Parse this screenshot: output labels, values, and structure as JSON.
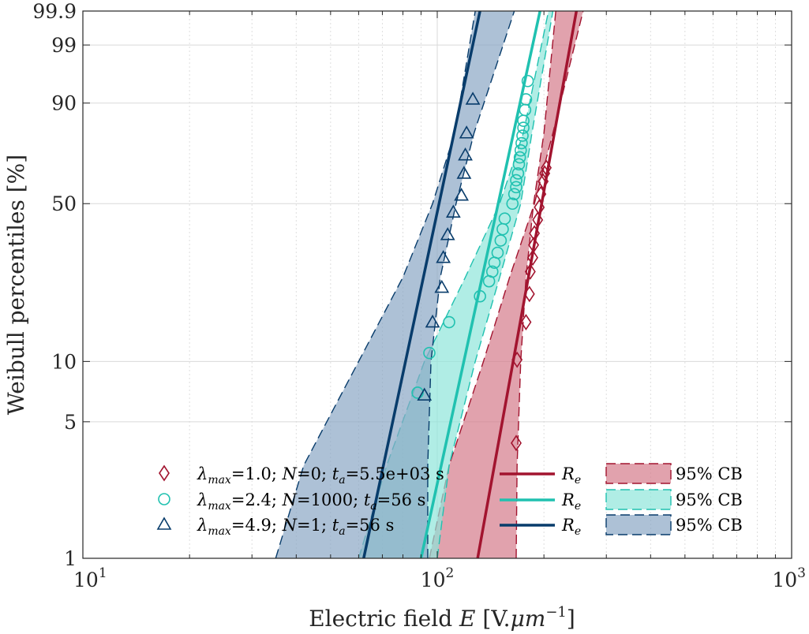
{
  "chart_data": {
    "type": "scatter",
    "xlabel": "Electric field E [V.μm⁻¹]",
    "xlabel_parts": {
      "prefix": "Electric field ",
      "var": "E",
      "units_open": " [V.",
      "mu": "μm",
      "exp": "−1",
      "units_close": "]"
    },
    "ylabel": "Weibull percentiles [%]",
    "xscale": "log",
    "yscale": "weibull",
    "xlim": [
      10,
      1000
    ],
    "ylim": [
      1,
      99.9
    ],
    "grid": true,
    "x_tick_labels": [
      {
        "base": "10",
        "exp": "1"
      },
      {
        "base": "10",
        "exp": "2"
      },
      {
        "base": "10",
        "exp": "3"
      }
    ],
    "y_ticks": [
      "1",
      "5",
      "10",
      "50",
      "90",
      "99",
      "99.9"
    ],
    "legend_position": "bottom",
    "series": [
      {
        "name": "λmax=1.0; N=0; ta=5.5e+03 s",
        "label_parts": {
          "lam": "1.0",
          "N": "0",
          "ta": "5.5e+03 s"
        },
        "color": "#a2142f",
        "marker": "diamond",
        "points": [
          [
            167,
            3.9
          ],
          [
            168,
            10.2
          ],
          [
            178,
            15.5
          ],
          [
            182,
            21
          ],
          [
            183,
            26.5
          ],
          [
            186,
            30.5
          ],
          [
            187,
            34.5
          ],
          [
            188,
            38.5
          ],
          [
            192,
            43.5
          ],
          [
            194,
            48.5
          ],
          [
            196,
            54
          ],
          [
            199,
            59.5
          ],
          [
            201,
            63
          ],
          [
            203,
            65.5
          ]
        ],
        "fit_label": "Re",
        "fit_line": [
          [
            130,
            1
          ],
          [
            247,
            99.9
          ]
        ],
        "band_label": "95% CB",
        "band_lower": [
          [
            167,
            1
          ],
          [
            168,
            3
          ],
          [
            172,
            10
          ],
          [
            178,
            25
          ],
          [
            187,
            50
          ],
          [
            200,
            80
          ],
          [
            216,
            99.9
          ]
        ],
        "band_upper": [
          [
            95,
            1
          ],
          [
            108,
            3
          ],
          [
            135,
            10
          ],
          [
            160,
            25
          ],
          [
            188,
            50
          ],
          [
            212,
            80
          ],
          [
            258,
            99.9
          ]
        ]
      },
      {
        "name": "λmax=2.4; N=1000; ta=56 s",
        "label_parts": {
          "lam": "2.4",
          "N": "1000",
          "ta": "56 s"
        },
        "color": "#20c1b0",
        "marker": "circle",
        "points": [
          [
            88,
            7
          ],
          [
            95,
            11
          ],
          [
            108,
            15.5
          ],
          [
            132,
            20.5
          ],
          [
            140,
            24
          ],
          [
            143,
            26.5
          ],
          [
            145,
            29
          ],
          [
            148,
            32
          ],
          [
            151,
            36
          ],
          [
            153,
            40
          ],
          [
            155,
            44
          ],
          [
            163,
            50
          ],
          [
            165,
            54
          ],
          [
            167,
            57
          ],
          [
            167,
            60
          ],
          [
            169,
            63
          ],
          [
            170,
            67
          ],
          [
            171,
            70
          ],
          [
            172,
            73
          ],
          [
            173,
            76
          ],
          [
            174,
            79
          ],
          [
            175,
            82
          ],
          [
            175,
            84.5
          ],
          [
            177,
            88
          ],
          [
            178,
            91
          ],
          [
            180,
            95
          ]
        ],
        "fit_label": "Re",
        "fit_line": [
          [
            90,
            1
          ],
          [
            195,
            99.9
          ]
        ],
        "band_lower": [
          [
            100,
            1
          ],
          [
            108,
            3
          ],
          [
            128,
            10
          ],
          [
            150,
            25
          ],
          [
            172,
            50
          ],
          [
            185,
            80
          ],
          [
            212,
            99.9
          ]
        ],
        "band_upper": [
          [
            60,
            1
          ],
          [
            72,
            3
          ],
          [
            92,
            10
          ],
          [
            120,
            25
          ],
          [
            150,
            50
          ],
          [
            175,
            80
          ],
          [
            206,
            99.9
          ]
        ]
      },
      {
        "name": "λmax=4.9; N=1; ta=56 s",
        "label_parts": {
          "lam": "4.9",
          "N": "1",
          "ta": "56 s"
        },
        "color": "#083c6b",
        "marker": "triangle",
        "points": [
          [
            92,
            6.8
          ],
          [
            97,
            15.5
          ],
          [
            103,
            22.5
          ],
          [
            104,
            30.5
          ],
          [
            107,
            38
          ],
          [
            111,
            46.5
          ],
          [
            117,
            53.5
          ],
          [
            119,
            63
          ],
          [
            120,
            71
          ],
          [
            121,
            80
          ],
          [
            126,
            91
          ]
        ],
        "fit_label": "Re",
        "fit_line": [
          [
            62,
            1
          ],
          [
            132,
            99.9
          ]
        ],
        "band_lower": [
          [
            94,
            1
          ],
          [
            94,
            3
          ],
          [
            96,
            10
          ],
          [
            102,
            25
          ],
          [
            113,
            50
          ],
          [
            127,
            80
          ],
          [
            165,
            99.9
          ]
        ],
        "band_upper": [
          [
            35,
            1
          ],
          [
            42,
            3
          ],
          [
            60,
            10
          ],
          [
            80,
            25
          ],
          [
            97,
            50
          ],
          [
            112,
            80
          ],
          [
            128,
            99.9
          ]
        ]
      }
    ]
  }
}
